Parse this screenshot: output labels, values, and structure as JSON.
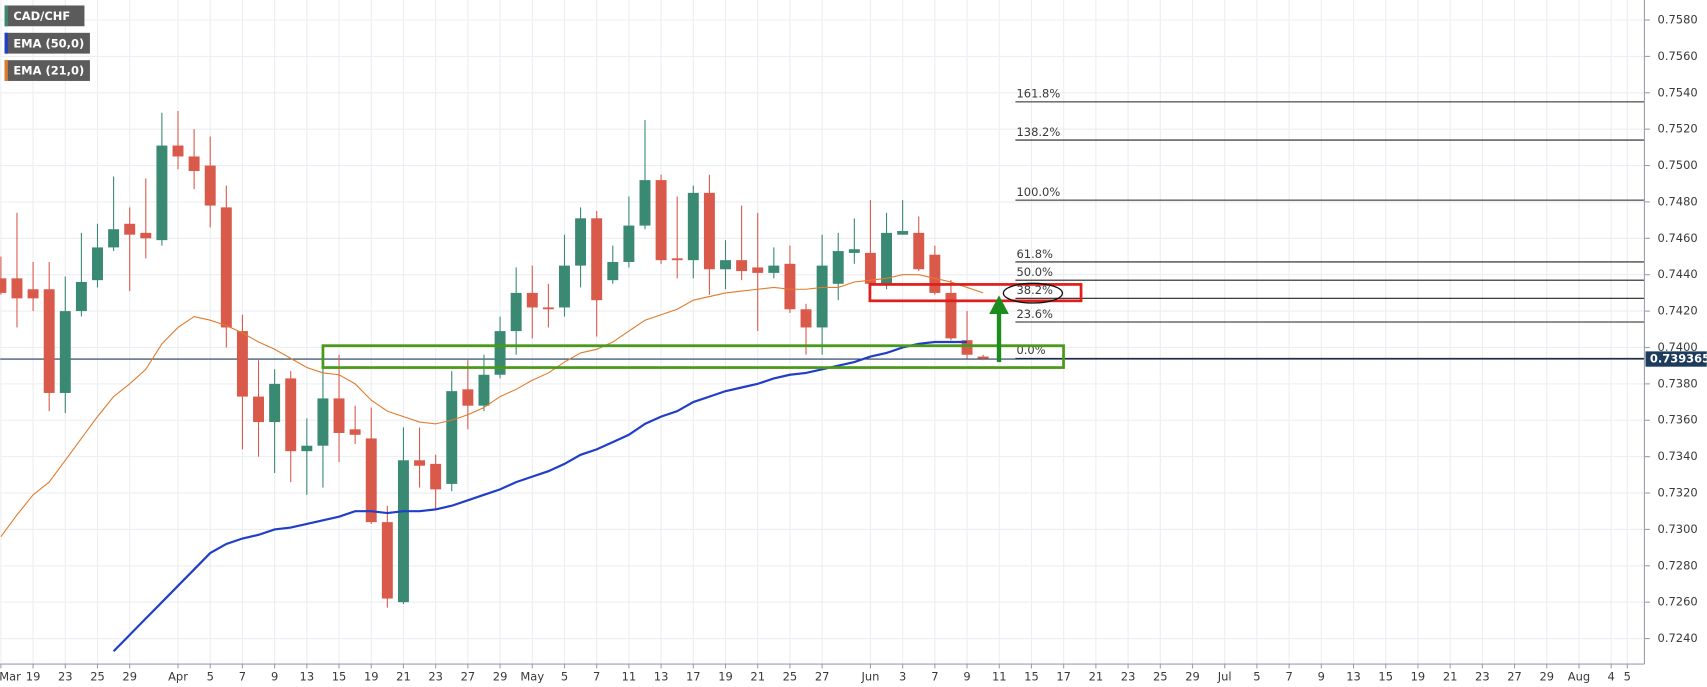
{
  "chart_data": {
    "type": "candlestick",
    "instrument": "CAD/CHF",
    "up_color": "#3a8a73",
    "down_color": "#d95a4a",
    "grid": true,
    "ylim": [
      0.7226,
      0.7591
    ],
    "yticks": [
      {
        "value": 0.724,
        "label": "0.7240"
      },
      {
        "value": 0.726,
        "label": "0.7260"
      },
      {
        "value": 0.728,
        "label": "0.7280"
      },
      {
        "value": 0.73,
        "label": "0.7300"
      },
      {
        "value": 0.732,
        "label": "0.7320"
      },
      {
        "value": 0.734,
        "label": "0.7340"
      },
      {
        "value": 0.736,
        "label": "0.7360"
      },
      {
        "value": 0.738,
        "label": "0.7380"
      },
      {
        "value": 0.74,
        "label": "0.7400"
      },
      {
        "value": 0.742,
        "label": "0.7420"
      },
      {
        "value": 0.744,
        "label": "0.7440"
      },
      {
        "value": 0.746,
        "label": "0.7460"
      },
      {
        "value": 0.748,
        "label": "0.7480"
      },
      {
        "value": 0.75,
        "label": "0.7500"
      },
      {
        "value": 0.752,
        "label": "0.7520"
      },
      {
        "value": 0.754,
        "label": "0.7540"
      },
      {
        "value": 0.756,
        "label": "0.7560"
      },
      {
        "value": 0.758,
        "label": "0.7580"
      }
    ],
    "last_price": 0.739365,
    "fib_levels": [
      {
        "label": "161.8%",
        "value": 0.7535
      },
      {
        "label": "138.2%",
        "value": 0.7514
      },
      {
        "label": "100.0%",
        "value": 0.7481
      },
      {
        "label": "61.8%",
        "value": 0.7447
      },
      {
        "label": "50.0%",
        "value": 0.7437
      },
      {
        "label": "38.2%",
        "value": 0.7427
      },
      {
        "label": "23.6%",
        "value": 0.7414
      },
      {
        "label": "0.0%",
        "value": 0.7394
      }
    ],
    "categories": [
      "Mar",
      null,
      "19",
      null,
      "23",
      null,
      "25",
      null,
      "29",
      null,
      null,
      "Apr",
      null,
      "5",
      null,
      "7",
      null,
      "9",
      null,
      "13",
      null,
      "15",
      null,
      "19",
      null,
      "21",
      null,
      "23",
      null,
      "27",
      null,
      "29",
      null,
      "May",
      null,
      "5",
      null,
      "7",
      null,
      "11",
      null,
      "13",
      null,
      "17",
      null,
      "19",
      null,
      "21",
      null,
      "25",
      null,
      "27",
      null,
      null,
      "Jun",
      null,
      "3",
      null,
      "7",
      null,
      "9",
      null,
      "11",
      null,
      "15",
      null,
      "17",
      null,
      "21",
      null,
      "23",
      null,
      "25",
      null,
      "29",
      null,
      "Jul",
      null,
      "5",
      null,
      "7",
      null,
      "9",
      null,
      "13",
      null,
      "15",
      null,
      "19",
      null,
      "21",
      null,
      "23",
      null,
      "27",
      null,
      "29",
      null,
      "Aug",
      null,
      "4",
      "5"
    ],
    "open": [
      0.7438,
      0.7438,
      0.7432,
      0.7432,
      0.7375,
      0.742,
      0.7437,
      0.7455,
      0.7468,
      0.7463,
      0.7459,
      0.7511,
      0.7505,
      0.75,
      0.7477,
      0.7409,
      0.7373,
      0.7359,
      0.7383,
      0.7343,
      0.7346,
      0.7372,
      0.7355,
      0.735,
      0.7304,
      0.726,
      0.7338,
      0.7336,
      0.7325,
      0.7377,
      0.7368,
      0.7385,
      0.7409,
      0.743,
      0.7422,
      0.7422,
      0.7445,
      0.7471,
      0.7437,
      0.7447,
      0.7467,
      0.7492,
      0.7449,
      0.7448,
      0.7485,
      0.7443,
      0.7448,
      0.7444,
      0.7441,
      0.7446,
      0.7421,
      0.7411,
      0.7435,
      0.7452,
      0.7452,
      0.7435,
      0.7462,
      0.7463,
      0.7451,
      0.743,
      0.7404,
      0.7395,
      null,
      null,
      null,
      null,
      null,
      null,
      null,
      null,
      null,
      null,
      null,
      null,
      null,
      null,
      null,
      null,
      null,
      null,
      null,
      null,
      null,
      null,
      null,
      null,
      null,
      null,
      null,
      null,
      null,
      null,
      null,
      null,
      null,
      null,
      null,
      null,
      null,
      null,
      null,
      null
    ],
    "high": [
      0.745,
      0.7474,
      0.7447,
      0.7447,
      0.7439,
      0.7463,
      0.7468,
      0.7494,
      0.7477,
      0.7493,
      0.7529,
      0.753,
      0.752,
      0.7516,
      0.7489,
      0.7418,
      0.7393,
      0.7388,
      0.7387,
      0.7361,
      0.7393,
      0.7396,
      0.7368,
      0.7367,
      0.7313,
      0.7356,
      0.7356,
      0.7341,
      0.7387,
      0.7393,
      0.7396,
      0.7417,
      0.7444,
      0.7445,
      0.7435,
      0.7462,
      0.7477,
      0.7475,
      0.7456,
      0.7483,
      0.7525,
      0.7495,
      0.7483,
      0.7489,
      0.7495,
      0.7459,
      0.7478,
      0.7474,
      0.7455,
      0.7456,
      0.7424,
      0.7462,
      0.7463,
      0.7471,
      0.7481,
      0.7474,
      0.7481,
      0.7472,
      0.7456,
      0.7437,
      0.742,
      0.7396,
      null,
      null,
      null,
      null,
      null,
      null,
      null,
      null,
      null,
      null,
      null,
      null,
      null,
      null,
      null,
      null,
      null,
      null,
      null,
      null,
      null,
      null,
      null,
      null,
      null,
      null,
      null,
      null,
      null,
      null,
      null,
      null,
      null,
      null,
      null,
      null,
      null,
      null,
      null,
      null
    ],
    "low": [
      0.7429,
      0.7411,
      0.742,
      0.7365,
      0.7364,
      0.7417,
      0.7433,
      0.7453,
      0.7431,
      0.7449,
      0.7456,
      0.7498,
      0.7487,
      0.7466,
      0.74,
      0.7344,
      0.734,
      0.7331,
      0.7326,
      0.7319,
      0.7323,
      0.7337,
      0.7347,
      0.7303,
      0.7257,
      0.7259,
      0.7323,
      0.7311,
      0.7321,
      0.7355,
      0.7365,
      0.7383,
      0.7396,
      0.7405,
      0.7411,
      0.7417,
      0.7433,
      0.7406,
      0.7435,
      0.7444,
      0.7465,
      0.7446,
      0.7438,
      0.7438,
      0.7429,
      0.7432,
      0.7437,
      0.7409,
      0.7438,
      0.7419,
      0.7396,
      0.7396,
      0.7426,
      0.7446,
      0.7431,
      0.7432,
      0.7462,
      0.7442,
      0.7429,
      0.7404,
      0.7394,
      0.7393,
      null,
      null,
      null,
      null,
      null,
      null,
      null,
      null,
      null,
      null,
      null,
      null,
      null,
      null,
      null,
      null,
      null,
      null,
      null,
      null,
      null,
      null,
      null,
      null,
      null,
      null,
      null,
      null,
      null,
      null,
      null,
      null,
      null,
      null,
      null,
      null,
      null,
      null,
      null,
      null
    ],
    "close": [
      0.743,
      0.7427,
      0.7427,
      0.7375,
      0.742,
      0.7436,
      0.7455,
      0.7465,
      0.7462,
      0.746,
      0.7511,
      0.7505,
      0.7497,
      0.7478,
      0.7411,
      0.7373,
      0.7359,
      0.738,
      0.7343,
      0.7346,
      0.7372,
      0.7353,
      0.7352,
      0.7304,
      0.7262,
      0.7338,
      0.7335,
      0.7322,
      0.7376,
      0.7368,
      0.7385,
      0.7409,
      0.743,
      0.7422,
      0.7421,
      0.7445,
      0.7471,
      0.7426,
      0.7447,
      0.7467,
      0.7492,
      0.7448,
      0.7448,
      0.7485,
      0.7443,
      0.7448,
      0.7442,
      0.7441,
      0.7445,
      0.7421,
      0.7411,
      0.7445,
      0.7453,
      0.7454,
      0.7435,
      0.7463,
      0.7464,
      0.7443,
      0.743,
      0.7405,
      0.7396,
      0.7394,
      null,
      null,
      null,
      null,
      null,
      null,
      null,
      null,
      null,
      null,
      null,
      null,
      null,
      null,
      null,
      null,
      null,
      null,
      null,
      null,
      null,
      null,
      null,
      null,
      null,
      null,
      null,
      null,
      null,
      null,
      null,
      null,
      null,
      null,
      null,
      null,
      null,
      null,
      null,
      null
    ],
    "series": [
      {
        "name": "EMA (50,0)",
        "color": "#1f3ec9",
        "values": [
          null,
          null,
          null,
          null,
          null,
          null,
          null,
          0.7233,
          0.7242,
          0.7251,
          0.726,
          0.7269,
          0.7278,
          0.7287,
          0.7292,
          0.7295,
          0.7297,
          0.73,
          0.7301,
          0.7303,
          0.7305,
          0.7307,
          0.731,
          0.731,
          0.7309,
          0.731,
          0.731,
          0.7311,
          0.7313,
          0.7316,
          0.7319,
          0.7322,
          0.7326,
          0.7329,
          0.7332,
          0.7336,
          0.7341,
          0.7344,
          0.7348,
          0.7352,
          0.7358,
          0.7362,
          0.7365,
          0.737,
          0.7373,
          0.7376,
          0.7378,
          0.738,
          0.7383,
          0.7385,
          0.7386,
          0.7388,
          0.739,
          0.7392,
          0.7395,
          0.7397,
          0.74,
          0.7402,
          0.7403,
          0.7403,
          0.7403,
          null,
          null,
          null,
          null,
          null,
          null,
          null,
          null,
          null,
          null,
          null,
          null,
          null,
          null,
          null,
          null,
          null,
          null,
          null,
          null,
          null,
          null,
          null,
          null,
          null,
          null,
          null,
          null,
          null,
          null,
          null,
          null,
          null,
          null,
          null,
          null,
          null,
          null,
          null,
          null,
          null
        ]
      },
      {
        "name": "EMA (21,0)",
        "color": "#e07b2c",
        "values": [
          0.7296,
          0.7308,
          0.7319,
          0.7326,
          0.7338,
          0.735,
          0.7362,
          0.7373,
          0.738,
          0.7388,
          0.7402,
          0.7411,
          0.7417,
          0.7415,
          0.7412,
          0.7408,
          0.7403,
          0.7399,
          0.7394,
          0.7389,
          0.7386,
          0.7385,
          0.738,
          0.7371,
          0.7365,
          0.7362,
          0.7359,
          0.7358,
          0.736,
          0.7363,
          0.7367,
          0.7373,
          0.7377,
          0.7382,
          0.7386,
          0.7392,
          0.7397,
          0.7399,
          0.7403,
          0.7409,
          0.7415,
          0.7418,
          0.7421,
          0.7426,
          0.7428,
          0.743,
          0.7431,
          0.7432,
          0.7433,
          0.7432,
          0.7432,
          0.7433,
          0.7433,
          0.7436,
          0.7437,
          0.7438,
          0.744,
          0.744,
          0.7438,
          0.7436,
          0.7433,
          0.743,
          null,
          null,
          null,
          null,
          null,
          null,
          null,
          null,
          null,
          null,
          null,
          null,
          null,
          null,
          null,
          null,
          null,
          null,
          null,
          null,
          null,
          null,
          null,
          null,
          null,
          null,
          null,
          null,
          null,
          null,
          null,
          null,
          null,
          null,
          null,
          null,
          null,
          null,
          null,
          null
        ]
      }
    ]
  }
}
